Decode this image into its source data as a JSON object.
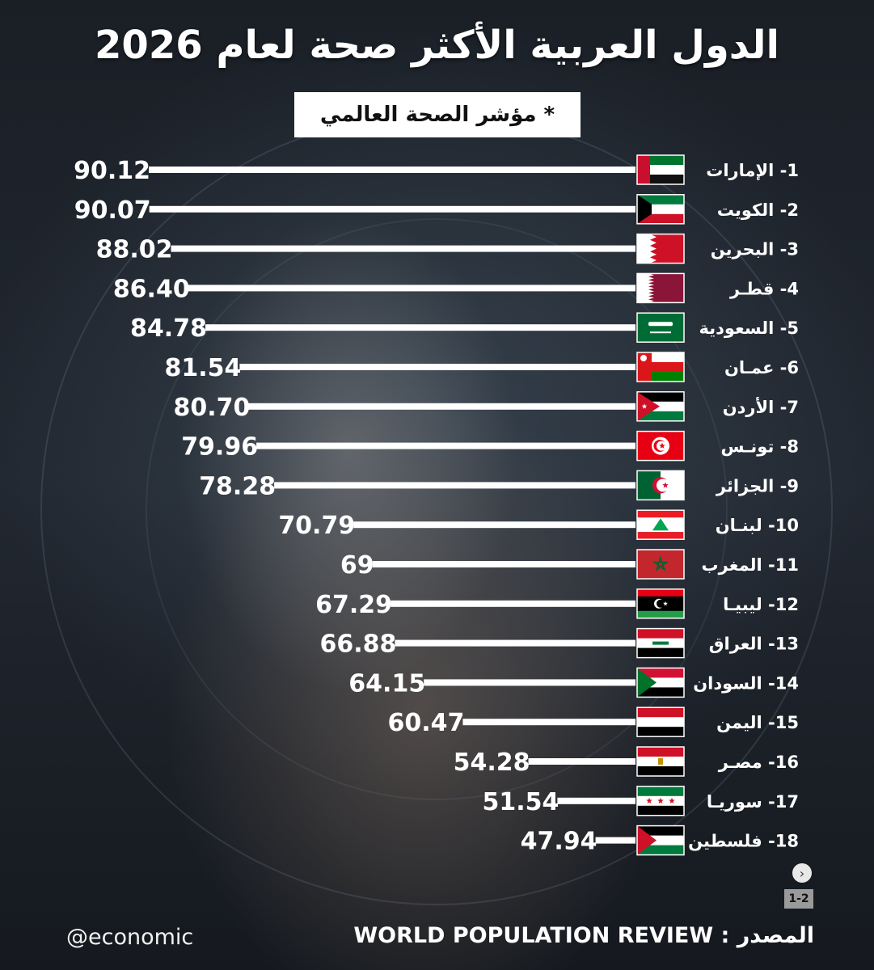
{
  "title": "الدول العربية الأكثر صحة لعام 2026",
  "subtitle": "* مؤشر الصحة العالمي",
  "source_label": "المصدر : WORLD POPULATION REVIEW",
  "handle": "@economic",
  "page_indicator": "1-2",
  "next_icon": "chevron-right-icon",
  "colors": {
    "bar": "#ffffff",
    "text": "#ffffff",
    "background": "#1e232a"
  },
  "chart_data": {
    "type": "bar",
    "orientation": "horizontal",
    "direction": "right-to-left",
    "title": "الدول العربية الأكثر صحة لعام 2026",
    "subtitle": "* مؤشر الصحة العالمي",
    "xlim": [
      0,
      95
    ],
    "grid": false,
    "categories": [
      "1- الإمارات",
      "2-  الكويت",
      "3- البحرين",
      "4- قطـر",
      "5- السعودية",
      "6- عمـان",
      "7- الأردن",
      "8- تونـس",
      "9- الجزائر",
      "10- لبنـان",
      "11- المغرب",
      "12- ليبيـا",
      "13- العراق",
      "14- السودان",
      "15- اليمن",
      "16- مصـر",
      "17- سوريـا",
      "18- فلسطين"
    ],
    "value_labels": [
      "90.12",
      "90.07",
      "88.02",
      "86.40",
      "84.78",
      "81.54",
      "80.70",
      "79.96",
      "78.28",
      "70.79",
      "69",
      "67.29",
      "66.88",
      "64.15",
      "60.47",
      "54.28",
      "51.54",
      "47.94"
    ],
    "values": [
      90.12,
      90.07,
      88.02,
      86.4,
      84.78,
      81.54,
      80.7,
      79.96,
      78.28,
      70.79,
      69,
      67.29,
      66.88,
      64.15,
      60.47,
      54.28,
      51.54,
      47.94
    ],
    "flags": [
      "uae",
      "kuwait",
      "bahrain",
      "qatar",
      "saudi",
      "oman",
      "jordan",
      "tunisia",
      "algeria",
      "lebanon",
      "morocco",
      "libya",
      "iraq",
      "sudan",
      "yemen",
      "egypt",
      "syria",
      "palestine"
    ]
  }
}
